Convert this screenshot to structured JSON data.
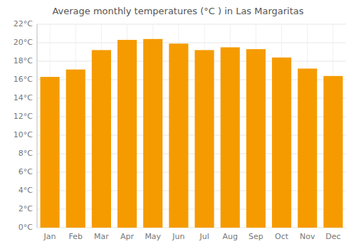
{
  "chart_data": {
    "type": "bar",
    "title": "Average monthly temperatures (°C ) in Las Margaritas",
    "categories": [
      "Jan",
      "Feb",
      "Mar",
      "Apr",
      "May",
      "Jun",
      "Jul",
      "Aug",
      "Sep",
      "Oct",
      "Nov",
      "Dec"
    ],
    "values": [
      16.3,
      17.1,
      19.2,
      20.3,
      20.4,
      19.9,
      19.2,
      19.5,
      19.3,
      18.4,
      17.2,
      16.4
    ],
    "color": "#F59B00",
    "ylim": [
      0,
      22
    ],
    "yticks": [
      {
        "value": 0,
        "label": "0°C"
      },
      {
        "value": 2,
        "label": "2°C"
      },
      {
        "value": 4,
        "label": "4°C"
      },
      {
        "value": 6,
        "label": "6°C"
      },
      {
        "value": 8,
        "label": "8°C"
      },
      {
        "value": 10,
        "label": "10°C"
      },
      {
        "value": 12,
        "label": "12°C"
      },
      {
        "value": 14,
        "label": "14°C"
      },
      {
        "value": 16,
        "label": "16°C"
      },
      {
        "value": 18,
        "label": "18°C"
      },
      {
        "value": 20,
        "label": "20°C"
      },
      {
        "value": 22,
        "label": "22°C"
      }
    ],
    "grid": true
  }
}
